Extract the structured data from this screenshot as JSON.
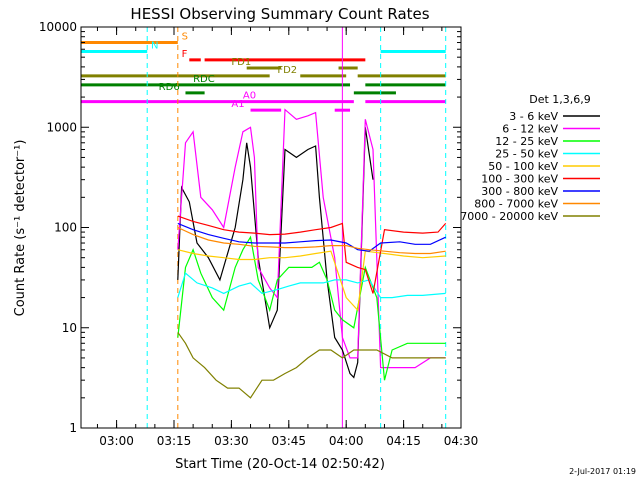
{
  "chart_data": {
    "type": "line",
    "title": "HESSI Observing Summary Count Rates",
    "xlabel": "Start Time (20-Oct-14 02:50:42)",
    "ylabel": "Count Rate (s⁻¹ detector⁻¹)",
    "y_scale": "log",
    "ylim": [
      1,
      10000
    ],
    "xlim": [
      "02:50:42",
      "04:30"
    ],
    "x_ticks": [
      "03:00",
      "03:15",
      "03:30",
      "03:45",
      "04:00",
      "04:15",
      "04:30"
    ],
    "y_ticks": [
      "1",
      "10",
      "100",
      "1000",
      "10000"
    ],
    "legend_title": "Det 1,3,6,9",
    "legend_position": "right",
    "timestamp": "2-Jul-2017 01:19",
    "series": [
      {
        "name": "3 - 6 keV",
        "color": "#000000",
        "points": [
          [
            "03:16",
            30
          ],
          [
            "03:17",
            250
          ],
          [
            "03:19",
            180
          ],
          [
            "03:21",
            70
          ],
          [
            "03:24",
            50
          ],
          [
            "03:27",
            30
          ],
          [
            "03:31",
            100
          ],
          [
            "03:33",
            300
          ],
          [
            "03:34",
            700
          ],
          [
            "03:35",
            400
          ],
          [
            "03:37",
            50
          ],
          [
            "03:40",
            10
          ],
          [
            "03:42",
            15
          ],
          [
            "03:44",
            600
          ],
          [
            "03:47",
            500
          ],
          [
            "03:50",
            600
          ],
          [
            "03:52",
            650
          ],
          [
            "03:53",
            200
          ],
          [
            "03:55",
            30
          ],
          [
            "03:57",
            8
          ],
          [
            "03:59",
            6
          ],
          [
            "04:01",
            3.5
          ],
          [
            "04:02",
            3.2
          ],
          [
            "04:03",
            4.5
          ],
          [
            "04:05",
            1000
          ],
          [
            "04:07",
            300
          ]
        ]
      },
      {
        "name": "6 - 12 keV",
        "color": "#ff00ff",
        "points": [
          [
            "03:16",
            60
          ],
          [
            "03:18",
            700
          ],
          [
            "03:20",
            900
          ],
          [
            "03:22",
            200
          ],
          [
            "03:25",
            150
          ],
          [
            "03:28",
            100
          ],
          [
            "03:31",
            400
          ],
          [
            "03:33",
            900
          ],
          [
            "03:35",
            1000
          ],
          [
            "03:36",
            500
          ],
          [
            "03:37",
            40
          ],
          [
            "03:40",
            25
          ],
          [
            "03:42",
            20
          ],
          [
            "03:44",
            1500
          ],
          [
            "03:47",
            1200
          ],
          [
            "03:50",
            1300
          ],
          [
            "03:52",
            1400
          ],
          [
            "03:54",
            200
          ],
          [
            "03:57",
            50
          ],
          [
            "03:59",
            8
          ],
          [
            "04:01",
            5
          ],
          [
            "04:03",
            5
          ],
          [
            "04:05",
            1200
          ],
          [
            "04:07",
            600
          ],
          [
            "04:09",
            4
          ],
          [
            "04:14",
            4
          ],
          [
            "04:18",
            4
          ],
          [
            "04:22",
            5
          ],
          [
            "04:26",
            5
          ]
        ]
      },
      {
        "name": "12 - 25 keV",
        "color": "#00ff00",
        "points": [
          [
            "03:16",
            8
          ],
          [
            "03:18",
            40
          ],
          [
            "03:20",
            60
          ],
          [
            "03:22",
            35
          ],
          [
            "03:25",
            20
          ],
          [
            "03:28",
            15
          ],
          [
            "03:31",
            40
          ],
          [
            "03:33",
            60
          ],
          [
            "03:35",
            80
          ],
          [
            "03:37",
            30
          ],
          [
            "03:40",
            15
          ],
          [
            "03:42",
            30
          ],
          [
            "03:45",
            40
          ],
          [
            "03:48",
            40
          ],
          [
            "03:51",
            40
          ],
          [
            "03:53",
            45
          ],
          [
            "03:55",
            30
          ],
          [
            "03:57",
            15
          ],
          [
            "03:59",
            12
          ],
          [
            "04:02",
            10
          ],
          [
            "04:05",
            40
          ],
          [
            "04:08",
            20
          ],
          [
            "04:10",
            3
          ],
          [
            "04:12",
            6
          ],
          [
            "04:16",
            7
          ],
          [
            "04:20",
            7
          ],
          [
            "04:26",
            7
          ]
        ]
      },
      {
        "name": "25 - 50 keV",
        "color": "#00ffff",
        "points": [
          [
            "03:16",
            20
          ],
          [
            "03:18",
            35
          ],
          [
            "03:21",
            28
          ],
          [
            "03:25",
            25
          ],
          [
            "03:28",
            22
          ],
          [
            "03:32",
            26
          ],
          [
            "03:35",
            28
          ],
          [
            "03:38",
            22
          ],
          [
            "03:42",
            24
          ],
          [
            "03:45",
            26
          ],
          [
            "03:48",
            28
          ],
          [
            "03:51",
            28
          ],
          [
            "03:54",
            28
          ],
          [
            "03:57",
            30
          ],
          [
            "04:00",
            30
          ],
          [
            "04:03",
            28
          ],
          [
            "04:06",
            30
          ],
          [
            "04:09",
            20
          ],
          [
            "04:12",
            20
          ],
          [
            "04:16",
            21
          ],
          [
            "04:20",
            21
          ],
          [
            "04:26",
            22
          ]
        ]
      },
      {
        "name": "50 - 100 keV",
        "color": "#ffcc00",
        "points": [
          [
            "03:16",
            60
          ],
          [
            "03:20",
            55
          ],
          [
            "03:24",
            52
          ],
          [
            "03:28",
            50
          ],
          [
            "03:32",
            48
          ],
          [
            "03:36",
            48
          ],
          [
            "03:40",
            50
          ],
          [
            "03:44",
            50
          ],
          [
            "03:48",
            52
          ],
          [
            "03:52",
            55
          ],
          [
            "03:56",
            58
          ],
          [
            "04:00",
            20
          ],
          [
            "04:03",
            15
          ],
          [
            "04:05",
            58
          ],
          [
            "04:10",
            55
          ],
          [
            "04:15",
            52
          ],
          [
            "04:20",
            50
          ],
          [
            "04:26",
            52
          ]
        ]
      },
      {
        "name": "100 - 300 keV",
        "color": "#ff0000",
        "points": [
          [
            "03:16",
            130
          ],
          [
            "03:20",
            115
          ],
          [
            "03:24",
            105
          ],
          [
            "03:28",
            95
          ],
          [
            "03:32",
            90
          ],
          [
            "03:36",
            88
          ],
          [
            "03:40",
            85
          ],
          [
            "03:44",
            86
          ],
          [
            "03:48",
            90
          ],
          [
            "03:52",
            95
          ],
          [
            "03:56",
            100
          ],
          [
            "03:59",
            110
          ],
          [
            "04:00",
            45
          ],
          [
            "04:03",
            40
          ],
          [
            "04:05",
            38
          ],
          [
            "04:07",
            22
          ],
          [
            "04:10",
            95
          ],
          [
            "04:15",
            90
          ],
          [
            "04:20",
            88
          ],
          [
            "04:24",
            90
          ],
          [
            "04:26",
            110
          ]
        ]
      },
      {
        "name": "300 - 800 keV",
        "color": "#0000ff",
        "points": [
          [
            "03:16",
            110
          ],
          [
            "03:20",
            95
          ],
          [
            "03:24",
            85
          ],
          [
            "03:28",
            78
          ],
          [
            "03:32",
            72
          ],
          [
            "03:36",
            70
          ],
          [
            "03:40",
            70
          ],
          [
            "03:44",
            70
          ],
          [
            "03:48",
            72
          ],
          [
            "03:52",
            74
          ],
          [
            "03:56",
            75
          ],
          [
            "04:00",
            70
          ],
          [
            "04:03",
            60
          ],
          [
            "04:06",
            58
          ],
          [
            "04:09",
            70
          ],
          [
            "04:14",
            72
          ],
          [
            "04:18",
            68
          ],
          [
            "04:22",
            68
          ],
          [
            "04:26",
            80
          ]
        ]
      },
      {
        "name": "800 - 7000 keV",
        "color": "#ff8800",
        "points": [
          [
            "03:16",
            100
          ],
          [
            "03:20",
            85
          ],
          [
            "03:24",
            75
          ],
          [
            "03:28",
            70
          ],
          [
            "03:32",
            68
          ],
          [
            "03:36",
            65
          ],
          [
            "03:40",
            64
          ],
          [
            "03:44",
            63
          ],
          [
            "03:48",
            63
          ],
          [
            "03:52",
            64
          ],
          [
            "03:56",
            66
          ],
          [
            "04:00",
            66
          ],
          [
            "04:03",
            62
          ],
          [
            "04:06",
            60
          ],
          [
            "04:10",
            58
          ],
          [
            "04:14",
            56
          ],
          [
            "04:18",
            55
          ],
          [
            "04:22",
            55
          ],
          [
            "04:26",
            58
          ]
        ]
      },
      {
        "name": "7000 - 20000 keV",
        "color": "#808000",
        "points": [
          [
            "03:16",
            9
          ],
          [
            "03:18",
            7
          ],
          [
            "03:20",
            5
          ],
          [
            "03:23",
            4
          ],
          [
            "03:26",
            3
          ],
          [
            "03:29",
            2.5
          ],
          [
            "03:32",
            2.5
          ],
          [
            "03:35",
            2
          ],
          [
            "03:38",
            3
          ],
          [
            "03:41",
            3
          ],
          [
            "03:44",
            3.5
          ],
          [
            "03:47",
            4
          ],
          [
            "03:50",
            5
          ],
          [
            "03:53",
            6
          ],
          [
            "03:56",
            6
          ],
          [
            "03:59",
            5
          ],
          [
            "04:02",
            6
          ],
          [
            "04:05",
            6
          ],
          [
            "04:08",
            6
          ],
          [
            "04:12",
            5
          ],
          [
            "04:16",
            5
          ],
          [
            "04:20",
            5
          ],
          [
            "04:26",
            5
          ]
        ]
      }
    ],
    "flag_bars": [
      {
        "label": "S",
        "color": "#ff8800",
        "y": 7000,
        "segments": [
          [
            "02:50:42",
            "03:16"
          ]
        ],
        "label_at": "03:17"
      },
      {
        "label": "N",
        "color": "#00ffff",
        "y": 5700,
        "segments": [
          [
            "02:50:42",
            "03:08"
          ],
          [
            "04:09",
            "04:26"
          ]
        ],
        "label_at": "03:09"
      },
      {
        "label": "F",
        "color": "#ff0000",
        "y": 4700,
        "segments": [
          [
            "03:19",
            "03:22"
          ],
          [
            "03:23",
            "04:05"
          ]
        ],
        "label_at": "03:17"
      },
      {
        "label": "FD1",
        "color": "#808000",
        "y": 3900,
        "segments": [
          [
            "03:34",
            "03:43"
          ],
          [
            "03:58",
            "04:03"
          ]
        ],
        "label_at": "03:30"
      },
      {
        "label": "FD2",
        "color": "#808000",
        "y": 3250,
        "segments": [
          [
            "02:50:42",
            "03:40"
          ],
          [
            "03:48",
            "04:00"
          ],
          [
            "04:03",
            "04:26"
          ]
        ],
        "label_at": "03:42"
      },
      {
        "label": "RDC",
        "color": "#008000",
        "y": 2650,
        "segments": [
          [
            "02:50:42",
            "04:01"
          ],
          [
            "04:05",
            "04:26"
          ]
        ],
        "label_at": "03:20"
      },
      {
        "label": "RD6",
        "color": "#008000",
        "y": 2200,
        "segments": [
          [
            "03:18",
            "03:23"
          ],
          [
            "04:02",
            "04:13"
          ]
        ],
        "label_at": "03:11"
      },
      {
        "label": "A0",
        "color": "#ff00ff",
        "y": 1800,
        "segments": [
          [
            "02:50:42",
            "04:02"
          ],
          [
            "04:05",
            "04:26"
          ]
        ],
        "label_at": "03:33"
      },
      {
        "label": "A1",
        "color": "#ff00ff",
        "y": 1480,
        "segments": [
          [
            "03:35",
            "03:43"
          ],
          [
            "03:57",
            "04:01"
          ]
        ],
        "label_at": "03:30"
      }
    ],
    "vertical_lines": [
      {
        "time": "02:50:42",
        "color": "#00ffff",
        "style": "solid"
      },
      {
        "time": "03:08",
        "color": "#00ffff",
        "style": "dashed"
      },
      {
        "time": "03:16",
        "color": "#ff8800",
        "style": "dashed"
      },
      {
        "time": "03:59",
        "color": "#ff00ff",
        "style": "solid"
      },
      {
        "time": "04:09",
        "color": "#00ffff",
        "style": "dashed"
      },
      {
        "time": "04:26",
        "color": "#00ffff",
        "style": "dashed"
      }
    ]
  }
}
